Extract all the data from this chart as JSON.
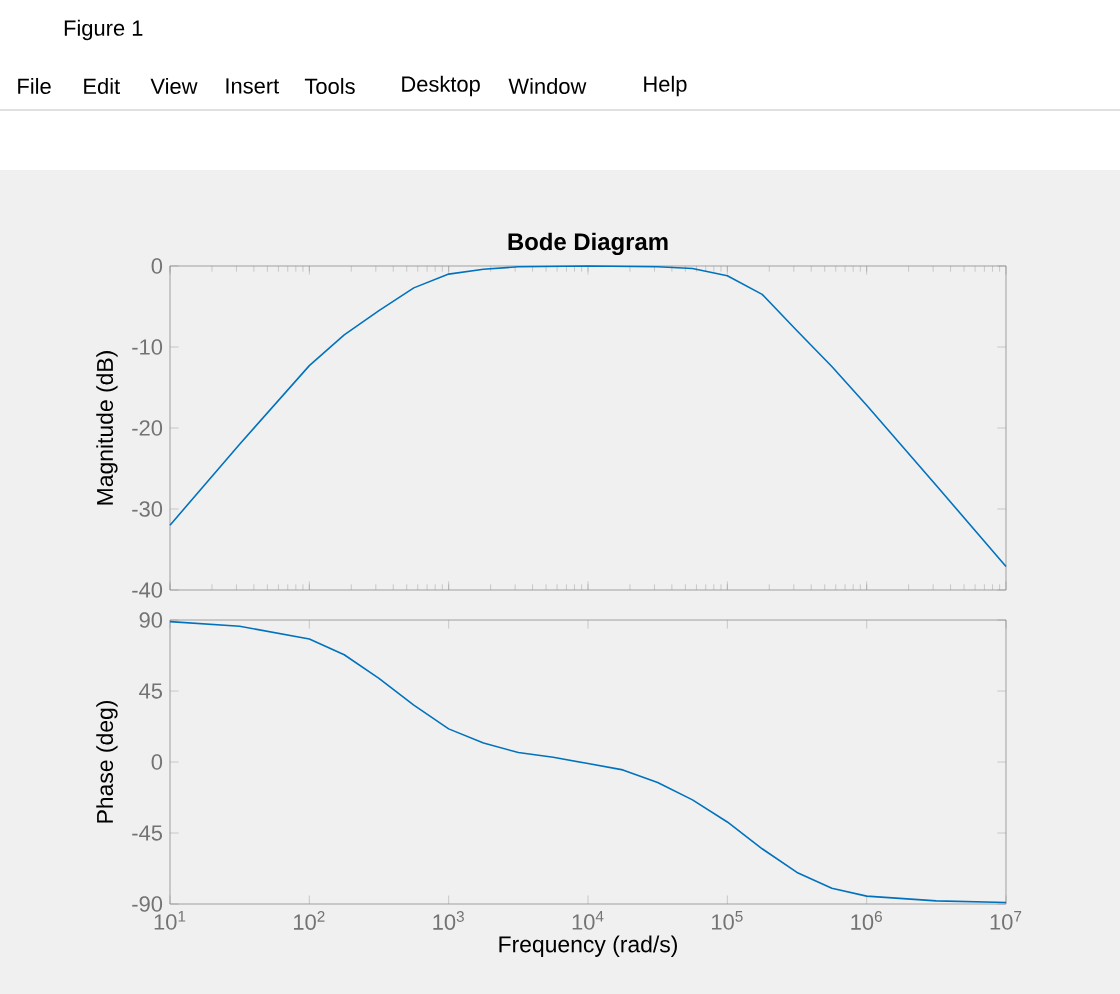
{
  "chart_data": [
    {
      "type": "line",
      "title": "Bode Diagram",
      "ylabel": "Magnitude (dB)",
      "log": "x",
      "tick_labels": "y",
      "xlim": [
        10,
        10000000
      ],
      "ylim": [
        -40,
        0
      ],
      "yticks": [
        0,
        -10,
        -20,
        -30,
        -40
      ],
      "annotations": [
        "Figure 1",
        "File",
        "Edit",
        "View",
        "Insert",
        "Tools",
        "Desktop",
        "Window",
        "Help"
      ],
      "series": [
        {
          "color": "#0072bd",
          "x": [
            10,
            31.6,
            100,
            178,
            316,
            562,
            1000,
            1778,
            3162,
            10000,
            31623,
            56234,
            100000,
            177828,
            316228,
            562341,
            1000000,
            3162278,
            10000000
          ],
          "values": [
            -32,
            -22,
            -12.3,
            -8.5,
            -5.5,
            -2.7,
            -1.0,
            -0.4,
            -0.1,
            0,
            -0.1,
            -0.3,
            -1.2,
            -3.5,
            -8.0,
            -12.4,
            -17.2,
            -27.1,
            -37.1
          ]
        }
      ]
    },
    {
      "type": "line",
      "xlabel": "Frequency  (rad/s)",
      "ylabel": "Phase (deg)",
      "log": "x",
      "xlim": [
        10,
        10000000
      ],
      "ylim": [
        -90,
        90
      ],
      "yticks": [
        90,
        45,
        0,
        -45,
        -90
      ],
      "xticks": [
        {
          "value": 10,
          "label": "10$^{1}$"
        },
        {
          "value": 100,
          "label": "10$^{2}$"
        },
        {
          "value": 1000,
          "label": "10$^{3}$"
        },
        {
          "value": 10000,
          "label": "10$^{4}$"
        },
        {
          "value": 100000,
          "label": "10$^{5}$"
        },
        {
          "value": 1000000,
          "label": "10$^{6}$"
        },
        {
          "value": 10000000,
          "label": "10$^{7}$"
        }
      ],
      "series": [
        {
          "color": "#0072bd",
          "x": [
            10,
            31.6,
            100,
            178,
            316,
            562,
            1000,
            1778,
            3162,
            5623,
            10000,
            17783,
            31623,
            56234,
            100000,
            177828,
            316228,
            562341,
            1000000,
            3162278,
            10000000
          ],
          "values": [
            89,
            86,
            78,
            68,
            53,
            36,
            21,
            12,
            6,
            3,
            -1,
            -5,
            -13,
            -24,
            -38,
            -55,
            -70,
            -80,
            -85,
            -88,
            -89
          ]
        }
      ]
    }
  ]
}
